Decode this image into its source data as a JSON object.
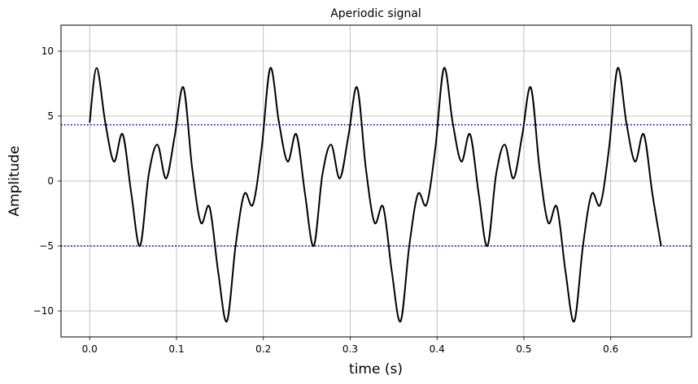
{
  "chart_data": {
    "type": "line",
    "title": "Aperiodic signal",
    "xlabel": "time (s)",
    "ylabel": "Amplitude",
    "xlim": [
      -0.033,
      0.693
    ],
    "ylim": [
      -12,
      12
    ],
    "grid": true,
    "x_ticks": [
      {
        "value": 0.0,
        "label": "0.0"
      },
      {
        "value": 0.1,
        "label": "0.1"
      },
      {
        "value": 0.2,
        "label": "0.2"
      },
      {
        "value": 0.3,
        "label": "0.3"
      },
      {
        "value": 0.4,
        "label": "0.4"
      },
      {
        "value": 0.5,
        "label": "0.5"
      },
      {
        "value": 0.6,
        "label": "0.6"
      }
    ],
    "y_ticks": [
      {
        "value": 10,
        "label": "10"
      },
      {
        "value": 5,
        "label": "5"
      },
      {
        "value": 0,
        "label": "0"
      },
      {
        "value": -5,
        "label": "−5"
      },
      {
        "value": -10,
        "label": "−10"
      }
    ],
    "reference_lines": [
      {
        "y": 4.33,
        "color": "#0000cc",
        "style": "dotted"
      },
      {
        "y": -5.0,
        "color": "#0000cc",
        "style": "dotted"
      }
    ],
    "series": [
      {
        "color": "#000000",
        "x": [
          0.0,
          0.008,
          0.018,
          0.028,
          0.038,
          0.048,
          0.058,
          0.068,
          0.078,
          0.088,
          0.098,
          0.108,
          0.118,
          0.128,
          0.138,
          0.148,
          0.158,
          0.168,
          0.178,
          0.188,
          0.198,
          0.208,
          0.218,
          0.228,
          0.238,
          0.248,
          0.258,
          0.268,
          0.278,
          0.288,
          0.298,
          0.308,
          0.318,
          0.328,
          0.338,
          0.348,
          0.358,
          0.368,
          0.378,
          0.388,
          0.398,
          0.408,
          0.418,
          0.428,
          0.438,
          0.448,
          0.458,
          0.468,
          0.478,
          0.488,
          0.498,
          0.508,
          0.518,
          0.528,
          0.538,
          0.548,
          0.558,
          0.568,
          0.578,
          0.588,
          0.598,
          0.608,
          0.618,
          0.628,
          0.638,
          0.648,
          0.658
        ],
        "y": [
          4.5,
          8.7,
          4.5,
          1.5,
          3.6,
          -1.0,
          -5.0,
          0.5,
          2.8,
          0.2,
          3.5,
          7.2,
          1.0,
          -3.2,
          -2.0,
          -7.0,
          -10.8,
          -5.0,
          -1.0,
          -1.8,
          2.5,
          8.7,
          4.5,
          1.5,
          3.6,
          -1.0,
          -5.0,
          0.5,
          2.8,
          0.2,
          3.5,
          7.2,
          1.0,
          -3.2,
          -2.0,
          -7.0,
          -10.8,
          -5.0,
          -1.0,
          -1.8,
          2.5,
          8.7,
          4.5,
          1.5,
          3.6,
          -1.0,
          -5.0,
          0.5,
          2.8,
          0.2,
          3.5,
          7.2,
          1.0,
          -3.2,
          -2.0,
          -7.0,
          -10.8,
          -5.0,
          -1.0,
          -1.8,
          2.5,
          8.7,
          4.5,
          1.5,
          3.6,
          -1.0,
          -5.0
        ]
      }
    ]
  }
}
